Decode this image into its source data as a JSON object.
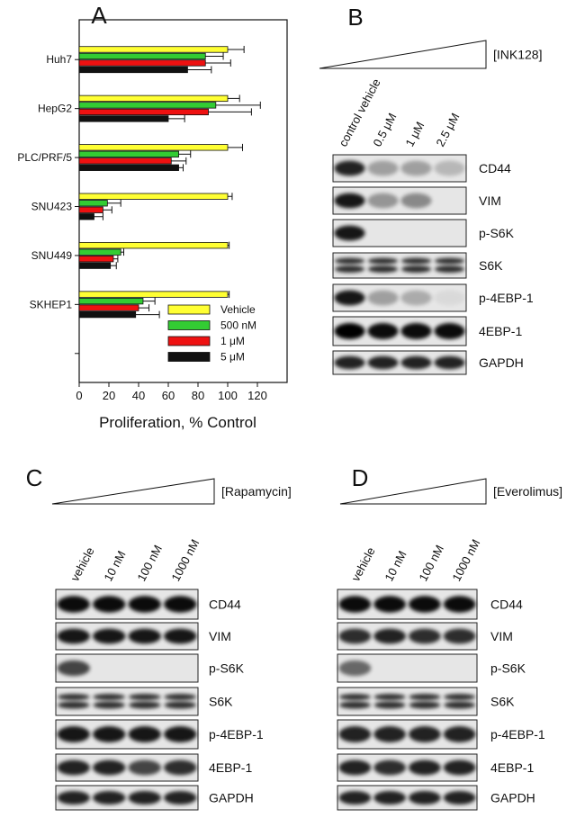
{
  "chart_data": {
    "type": "bar",
    "orientation": "horizontal",
    "panel_label": "A",
    "x_label": "Proliferation, % Control",
    "categories": [
      "Huh7",
      "HepG2",
      "PLC/PRF/5",
      "SNU423",
      "SNU449",
      "SKHEP1",
      null
    ],
    "series": [
      {
        "name": "Vehicle",
        "color": "#ffff33",
        "values": [
          100,
          100,
          100,
          100,
          100,
          100,
          null
        ],
        "errors": [
          11,
          8,
          10,
          3,
          1,
          1,
          null
        ]
      },
      {
        "name": "500 nM",
        "color": "#33cc33",
        "values": [
          85,
          92,
          67,
          19,
          28,
          43,
          null
        ],
        "errors": [
          12,
          30,
          8,
          9,
          2,
          8,
          null
        ]
      },
      {
        "name": "1 μM",
        "color": "#ee1111",
        "values": [
          85,
          87,
          62,
          16,
          23,
          40,
          null
        ],
        "errors": [
          17,
          29,
          10,
          6,
          3,
          7,
          null
        ]
      },
      {
        "name": "5 μM",
        "color": "#111111",
        "values": [
          73,
          60,
          67,
          10,
          21,
          38,
          null
        ],
        "errors": [
          16,
          11,
          3,
          6,
          4,
          16,
          null
        ]
      }
    ],
    "xlim": [
      0,
      140
    ],
    "xticks": [
      0,
      20,
      40,
      60,
      80,
      100,
      120
    ],
    "legend": "lower right"
  },
  "blots": [
    {
      "panel_label": "B",
      "treatment": "[INK128]",
      "lanes": [
        "control vehicle",
        "0.5 μM",
        "1 μM",
        "2.5 μM"
      ],
      "rows": [
        "CD44",
        "VIM",
        "p-S6K",
        "S6K",
        "p-4EBP-1",
        "4EBP-1",
        "GAPDH"
      ]
    },
    {
      "panel_label": "C",
      "treatment": "[Rapamycin]",
      "lanes": [
        "vehicle",
        "10 nM",
        "100 nM",
        "1000 nM"
      ],
      "rows": [
        "CD44",
        "VIM",
        "p-S6K",
        "S6K",
        "p-4EBP-1",
        "4EBP-1",
        "GAPDH"
      ]
    },
    {
      "panel_label": "D",
      "treatment": "[Everolimus]",
      "lanes": [
        "vehicle",
        "10 nM",
        "100 nM",
        "1000 nM"
      ],
      "rows": [
        "CD44",
        "VIM",
        "p-S6K",
        "S6K",
        "p-4EBP-1",
        "4EBP-1",
        "GAPDH"
      ]
    }
  ]
}
